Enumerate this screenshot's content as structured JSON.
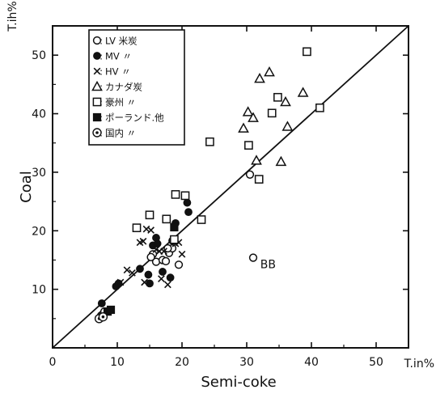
{
  "chart_data": {
    "type": "scatter",
    "title": "",
    "xlabel": "Semi-coke",
    "ylabel": "Coal",
    "x_unit": "T.in%",
    "y_unit": "T.ih%",
    "xlim": [
      0,
      55
    ],
    "ylim": [
      0,
      55
    ],
    "xticks": [
      "0",
      "10",
      "20",
      "30",
      "40",
      "50"
    ],
    "yticks": [
      "10",
      "20",
      "30",
      "40",
      "50"
    ],
    "legend_position": "top-left",
    "reference_line": "y = x",
    "annotations": [
      {
        "text": "BB",
        "x": 33.3,
        "y": 14.3
      }
    ],
    "series": [
      {
        "name": "○:LV 米炭",
        "marker": "open-circle",
        "points": [
          [
            7.5,
            5.5
          ],
          [
            7.8,
            5.8
          ],
          [
            8.0,
            6.2
          ],
          [
            15.5,
            16.0
          ],
          [
            16.0,
            14.7
          ],
          [
            17.0,
            15.0
          ],
          [
            17.5,
            14.8
          ],
          [
            18.0,
            16.2
          ],
          [
            18.5,
            17.0
          ],
          [
            19.5,
            14.2
          ],
          [
            17.8,
            17.0
          ],
          [
            15.2,
            15.5
          ],
          [
            30.5,
            29.6
          ],
          [
            31.0,
            15.4
          ]
        ]
      },
      {
        "name": "●:MV 〃",
        "marker": "filled-circle",
        "points": [
          [
            7.6,
            7.6
          ],
          [
            9.8,
            10.5
          ],
          [
            10.2,
            11.0
          ],
          [
            13.5,
            13.5
          ],
          [
            14.8,
            12.5
          ],
          [
            15.0,
            11.0
          ],
          [
            15.5,
            17.5
          ],
          [
            16.0,
            18.8
          ],
          [
            16.2,
            17.8
          ],
          [
            17.0,
            13.0
          ],
          [
            18.2,
            12.0
          ],
          [
            18.5,
            18.3
          ],
          [
            19.0,
            21.3
          ],
          [
            20.8,
            24.8
          ],
          [
            21.0,
            23.2
          ]
        ]
      },
      {
        "name": "×:HV 〃",
        "marker": "x",
        "points": [
          [
            10.5,
            11.2
          ],
          [
            11.5,
            13.3
          ],
          [
            12.3,
            12.8
          ],
          [
            13.5,
            18.0
          ],
          [
            14.0,
            18.2
          ],
          [
            14.5,
            20.3
          ],
          [
            15.2,
            20.1
          ],
          [
            16.0,
            16.8
          ],
          [
            16.5,
            16.5
          ],
          [
            17.2,
            16.5
          ],
          [
            19.0,
            17.8
          ],
          [
            19.5,
            18.0
          ],
          [
            14.2,
            11.2
          ],
          [
            16.8,
            11.8
          ],
          [
            17.8,
            10.8
          ],
          [
            20.0,
            16.0
          ]
        ]
      },
      {
        "name": "△:カナダ炭",
        "marker": "open-triangle",
        "points": [
          [
            29.5,
            37.5
          ],
          [
            30.2,
            40.3
          ],
          [
            31.0,
            39.3
          ],
          [
            31.5,
            32.0
          ],
          [
            32.0,
            46.0
          ],
          [
            33.5,
            47.1
          ],
          [
            35.3,
            31.8
          ],
          [
            36.0,
            42.0
          ],
          [
            36.3,
            37.8
          ],
          [
            38.7,
            43.6
          ]
        ]
      },
      {
        "name": "□:豪州 〃",
        "marker": "open-square",
        "points": [
          [
            13.0,
            20.5
          ],
          [
            15.0,
            22.7
          ],
          [
            17.6,
            22.0
          ],
          [
            18.8,
            18.5
          ],
          [
            19.0,
            26.2
          ],
          [
            20.5,
            26.0
          ],
          [
            23.0,
            21.9
          ],
          [
            24.3,
            35.2
          ],
          [
            30.3,
            34.6
          ],
          [
            31.9,
            28.8
          ],
          [
            33.9,
            40.1
          ],
          [
            34.8,
            42.8
          ],
          [
            39.3,
            50.6
          ],
          [
            41.3,
            41.0
          ]
        ]
      },
      {
        "name": "■:ポーランド.他",
        "marker": "filled-square",
        "points": [
          [
            8.5,
            6.2
          ],
          [
            9.0,
            6.5
          ],
          [
            18.8,
            20.6
          ]
        ]
      },
      {
        "name": "◎:国内 〃",
        "marker": "double-circle",
        "points": [
          [
            7.2,
            5.0
          ],
          [
            7.8,
            5.3
          ]
        ]
      }
    ]
  }
}
